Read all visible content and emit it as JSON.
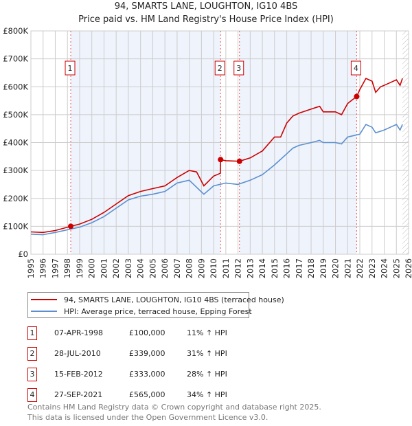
{
  "chart_data": {
    "type": "line",
    "title": "94, SMARTS LANE, LOUGHTON, IG10 4BS",
    "subtitle": "Price paid vs. HM Land Registry's House Price Index (HPI)",
    "xlim": [
      1995,
      2026
    ],
    "ylim": [
      0,
      800000
    ],
    "yticks": [
      "£0",
      "£100K",
      "£200K",
      "£300K",
      "£400K",
      "£500K",
      "£600K",
      "£700K",
      "£800K"
    ],
    "xticks": [
      "1995",
      "1996",
      "1997",
      "1998",
      "1999",
      "2000",
      "2001",
      "2002",
      "2003",
      "2004",
      "2005",
      "2006",
      "2007",
      "2008",
      "2009",
      "2010",
      "2011",
      "2012",
      "2013",
      "2014",
      "2015",
      "2016",
      "2017",
      "2018",
      "2019",
      "2020",
      "2021",
      "2022",
      "2023",
      "2024",
      "2025",
      "2026"
    ],
    "grid": true,
    "series": [
      {
        "name": "94, SMARTS LANE, LOUGHTON, IG10 4BS (terraced house)",
        "color": "#cc0000",
        "x": [
          1995,
          1996,
          1997,
          1998.27,
          1999,
          2000,
          2001,
          2002,
          2003,
          2004,
          2005,
          2006,
          2007,
          2008,
          2008.6,
          2009.2,
          2010,
          2010.55,
          2010.57,
          2011,
          2012.12,
          2013,
          2014,
          2015,
          2015.5,
          2016,
          2016.5,
          2017,
          2018,
          2018.7,
          2019,
          2020,
          2020.5,
          2021,
          2021.74,
          2022,
          2022.5,
          2023,
          2023.3,
          2023.7,
          2024,
          2024.5,
          2025,
          2025.3,
          2025.5
        ],
        "y": [
          80000,
          78000,
          85000,
          100000,
          108000,
          125000,
          150000,
          180000,
          210000,
          225000,
          235000,
          245000,
          275000,
          300000,
          295000,
          245000,
          280000,
          290000,
          339000,
          335000,
          333000,
          345000,
          370000,
          420000,
          420000,
          470000,
          495000,
          505000,
          520000,
          530000,
          510000,
          510000,
          500000,
          540000,
          565000,
          590000,
          630000,
          620000,
          580000,
          600000,
          605000,
          615000,
          625000,
          605000,
          630000
        ]
      },
      {
        "name": "HPI: Average price, terraced house, Epping Forest",
        "color": "#5b8fd0",
        "x": [
          1995,
          1996,
          1997,
          1998.27,
          1999,
          2000,
          2001,
          2002,
          2003,
          2004,
          2005,
          2006,
          2007,
          2008,
          2009.2,
          2010,
          2011,
          2012,
          2013,
          2014,
          2015,
          2016,
          2016.5,
          2017,
          2018,
          2018.7,
          2019,
          2020,
          2020.5,
          2021,
          2022,
          2022.5,
          2023,
          2023.3,
          2024,
          2024.5,
          2025,
          2025.3,
          2025.5
        ],
        "y": [
          72000,
          70000,
          78000,
          90000,
          97000,
          113000,
          135000,
          165000,
          195000,
          208000,
          215000,
          225000,
          255000,
          265000,
          215000,
          245000,
          255000,
          250000,
          265000,
          285000,
          320000,
          360000,
          380000,
          390000,
          400000,
          408000,
          400000,
          400000,
          395000,
          420000,
          430000,
          465000,
          455000,
          435000,
          445000,
          455000,
          465000,
          445000,
          465000
        ]
      }
    ],
    "sales": [
      {
        "label": "1",
        "x": 1998.27,
        "y": 100000
      },
      {
        "label": "2",
        "x": 2010.57,
        "y": 339000
      },
      {
        "label": "3",
        "x": 2012.12,
        "y": 333000
      },
      {
        "label": "4",
        "x": 2021.74,
        "y": 565000
      }
    ],
    "shaded": [
      [
        1998.27,
        2010.57
      ],
      [
        2012.12,
        2021.74
      ]
    ],
    "hatched_from": 2025.5
  },
  "table": [
    {
      "num": "1",
      "date": "07-APR-1998",
      "price": "£100,000",
      "hpi": "11% ↑ HPI"
    },
    {
      "num": "2",
      "date": "28-JUL-2010",
      "price": "£339,000",
      "hpi": "31% ↑ HPI"
    },
    {
      "num": "3",
      "date": "15-FEB-2012",
      "price": "£333,000",
      "hpi": "28% ↑ HPI"
    },
    {
      "num": "4",
      "date": "27-SEP-2021",
      "price": "£565,000",
      "hpi": "34% ↑ HPI"
    }
  ],
  "footer": [
    "Contains HM Land Registry data © Crown copyright and database right 2025.",
    "This data is licensed under the Open Government Licence v3.0."
  ]
}
